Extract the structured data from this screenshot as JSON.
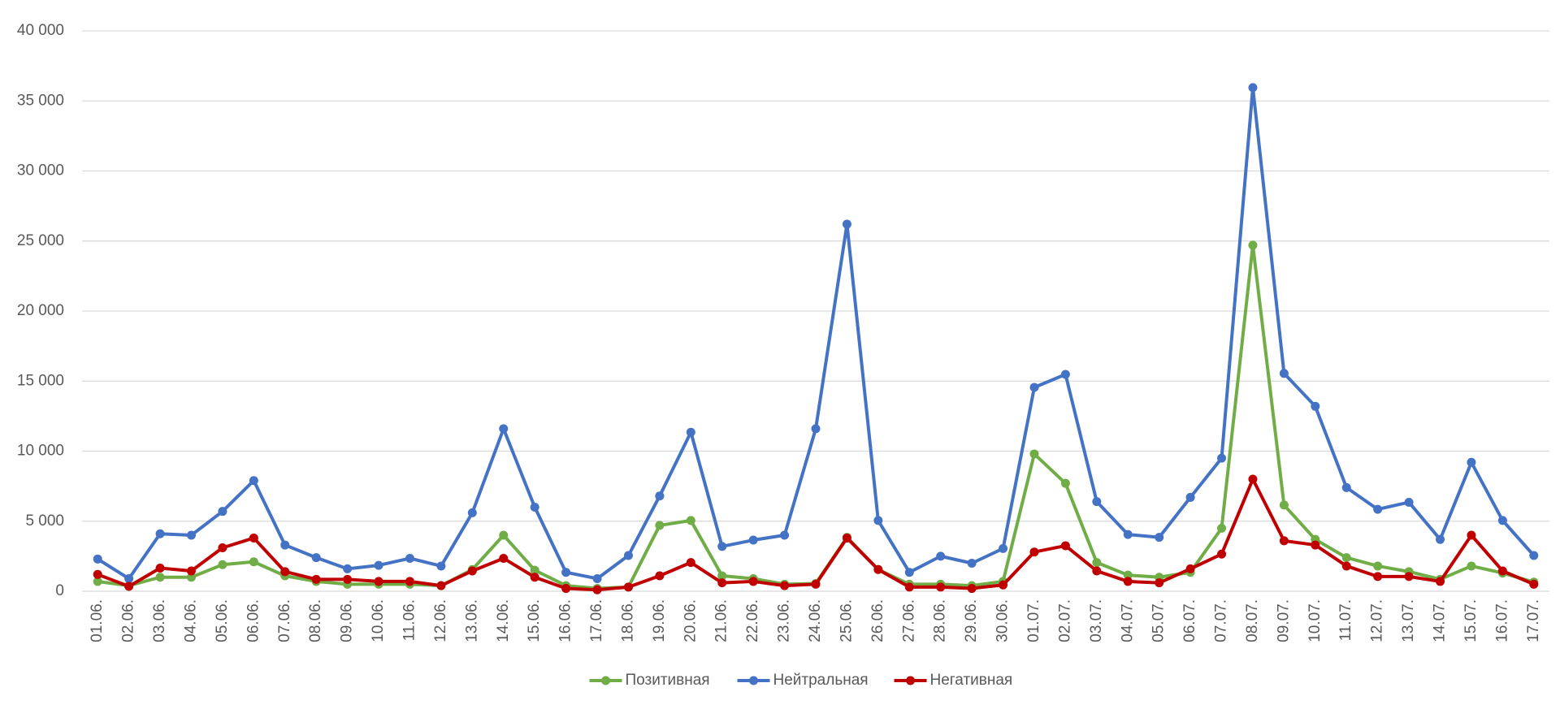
{
  "chart_data": {
    "type": "line",
    "categories": [
      "01.06.",
      "02.06.",
      "03.06.",
      "04.06.",
      "05.06.",
      "06.06.",
      "07.06.",
      "08.06.",
      "09.06.",
      "10.06.",
      "11.06.",
      "12.06.",
      "13.06.",
      "14.06.",
      "15.06.",
      "16.06.",
      "17.06.",
      "18.06.",
      "19.06.",
      "20.06.",
      "21.06.",
      "22.06.",
      "23.06.",
      "24.06.",
      "25.06.",
      "26.06.",
      "27.06.",
      "28.06.",
      "29.06.",
      "30.06.",
      "01.07.",
      "02.07.",
      "03.07.",
      "04.07.",
      "05.07.",
      "06.07.",
      "07.07.",
      "08.07.",
      "09.07.",
      "10.07.",
      "11.07.",
      "12.07.",
      "13.07.",
      "14.07.",
      "15.07.",
      "16.07.",
      "17.07."
    ],
    "series": [
      {
        "name": "Позитивная",
        "color": "#70ad47",
        "values": [
          700,
          400,
          1000,
          1000,
          1900,
          2100,
          1100,
          700,
          500,
          500,
          500,
          400,
          1550,
          4000,
          1500,
          400,
          200,
          300,
          4700,
          5050,
          1100,
          900,
          500,
          550,
          3850,
          1550,
          500,
          500,
          400,
          700,
          9800,
          7700,
          2050,
          1150,
          1000,
          1350,
          4500,
          24700,
          6150,
          3700,
          2400,
          1800,
          1400,
          850,
          1800,
          1300,
          650
        ]
      },
      {
        "name": "Нейтральная",
        "color": "#4472c4",
        "values": [
          2300,
          900,
          4100,
          4000,
          5700,
          7900,
          3300,
          2400,
          1600,
          1850,
          2350,
          1800,
          5600,
          11600,
          6000,
          1350,
          900,
          2550,
          6800,
          11350,
          3200,
          3650,
          4000,
          11600,
          26200,
          5050,
          1350,
          2500,
          2000,
          3050,
          14550,
          15480,
          6400,
          4050,
          3850,
          6700,
          9500,
          35950,
          15550,
          13200,
          7400,
          5850,
          6350,
          3700,
          9200,
          5050,
          2550
        ]
      },
      {
        "name": "Негативная",
        "color": "#c00000",
        "values": [
          1200,
          350,
          1650,
          1450,
          3100,
          3800,
          1400,
          850,
          850,
          700,
          700,
          400,
          1450,
          2350,
          1000,
          200,
          100,
          300,
          1100,
          2050,
          600,
          700,
          400,
          500,
          3800,
          1550,
          300,
          300,
          200,
          450,
          2800,
          3250,
          1450,
          700,
          600,
          1600,
          2650,
          8000,
          3600,
          3300,
          1800,
          1050,
          1050,
          700,
          4000,
          1450,
          500
        ]
      }
    ],
    "ylim": [
      0,
      40000
    ],
    "yticks": [
      0,
      {
        "value": 5000,
        "label": "5 000"
      },
      {
        "value": 10000,
        "label": "10 000"
      },
      {
        "value": 15000,
        "label": "15 000"
      },
      {
        "value": 20000,
        "label": "20 000"
      },
      {
        "value": 25000,
        "label": "25 000"
      },
      {
        "value": 30000,
        "label": "30 000"
      },
      {
        "value": 35000,
        "label": "35 000"
      },
      {
        "value": 40000,
        "label": "40 000"
      }
    ],
    "grid": true,
    "legend": "bottom"
  }
}
